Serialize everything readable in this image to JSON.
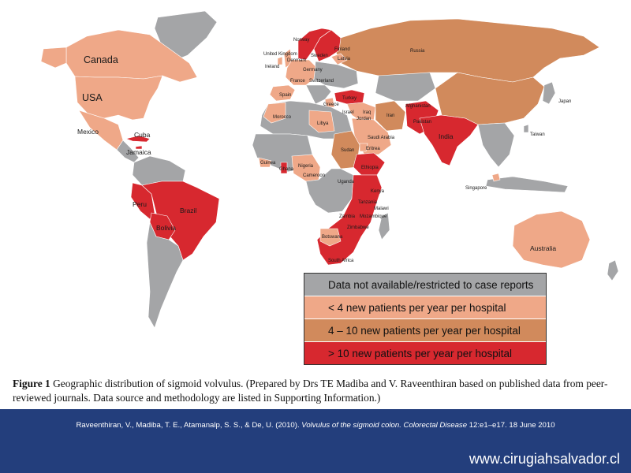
{
  "colors": {
    "ocean": "#ffffff",
    "no_data": "#a4a5a7",
    "low": "#efa888",
    "mid": "#d18a5c",
    "high": "#d7282f",
    "footer_bg": "#233e7c"
  },
  "legend": [
    {
      "label": "Data not available/restricted to case reports",
      "category": "no_data"
    },
    {
      "label": "< 4 new patients per year per hospital",
      "category": "low"
    },
    {
      "label": "4 – 10 new patients per year per hospital",
      "category": "mid"
    },
    {
      "label": "> 10 new patients per year per hospital",
      "category": "high"
    }
  ],
  "countries": {
    "canada": "Canada",
    "usa": "USA",
    "mexico": "Mexico",
    "cuba": "Cuba",
    "jamaica": "Jamaica",
    "peru": "Peru",
    "brazil": "Brazil",
    "bolivia": "Bolivia",
    "russia": "Russia",
    "norway": "Norway",
    "uk": "United Kingdom",
    "denmark": "Denmark",
    "sweden": "Sweden",
    "finland": "Finland",
    "latvia": "Latvia",
    "ireland": "Ireland",
    "germany": "Germany",
    "france": "France",
    "switzerland": "Switzerland",
    "spain": "Spain",
    "turkey": "Turkey",
    "greece": "Greece",
    "israel": "Israel",
    "iraq": "Iraq",
    "jordan": "Jordan",
    "iran": "Iran",
    "afghanistan": "Afghanistan",
    "pakistan": "Pakistan",
    "india": "India",
    "japan": "Japan",
    "taiwan": "Taiwan",
    "morocco": "Morocco",
    "libya": "Libya",
    "saudi_arabia": "Saudi Arabia",
    "eritrea": "Eritrea",
    "sudan": "Sudan",
    "ethiopia": "Ethiopia",
    "guinea": "Guinea",
    "ghana": "Ghana",
    "nigeria": "Nigeria",
    "cameroon": "Cameroon",
    "uganda": "Uganda",
    "kenya": "Kenya",
    "tanzania": "Tanzania",
    "malawi": "Malawi",
    "zambia": "Zambia",
    "mozambique": "Mozambique",
    "zimbabwe": "Zimbabwe",
    "botswana": "Botswana",
    "south_africa": "South Africa",
    "singapore": "Singapore",
    "australia": "Australia"
  },
  "caption": {
    "label": "Figure 1",
    "text": "Geographic distribution of sigmoid volvulus. (Prepared by Drs TE Madiba and V. Raveenthiran based on published data from peer-reviewed journals. Data source and methodology are listed in Supporting Information.)"
  },
  "citation": {
    "authors": "Raveenthiran, V., Madiba, T. E., Atamanalp, S. S., & De, U. (2010). ",
    "title": "Volvulus of the sigmoid colon. Colorectal Disease",
    "rest": " 12:e1–e17. 18 June 2010"
  },
  "website": "www.cirugiahsalvador.cl"
}
